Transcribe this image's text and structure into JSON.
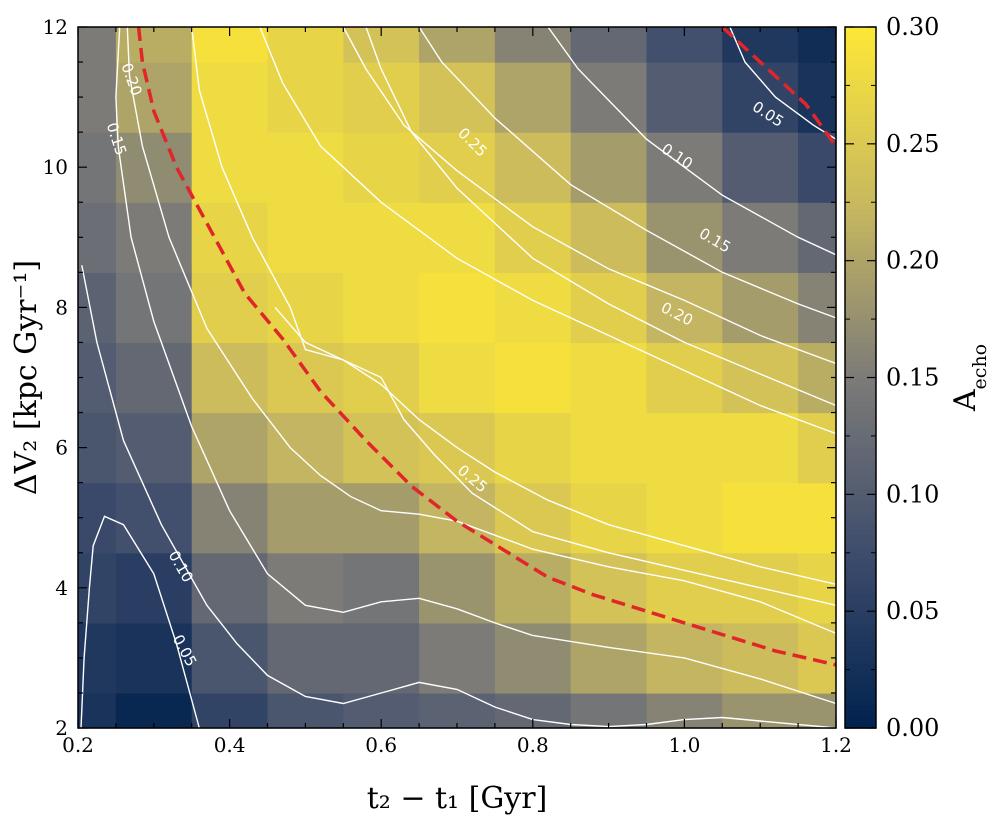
{
  "chart_data": {
    "type": "heatmap",
    "xlabel": "t₂ − t₁ [Gyr]",
    "ylabel": "ΔV₂ [kpc Gyr⁻¹]",
    "xlim": [
      0.2,
      1.2
    ],
    "ylim": [
      2,
      12
    ],
    "x_ticks": [
      "0.2",
      "0.4",
      "0.6",
      "0.8",
      "1.0",
      "1.2"
    ],
    "y_ticks": [
      "2",
      "4",
      "6",
      "8",
      "10",
      "12"
    ],
    "x_edges": [
      0.2,
      0.25,
      0.35,
      0.45,
      0.55,
      0.65,
      0.75,
      0.85,
      0.95,
      1.05,
      1.15,
      1.2
    ],
    "y_edges": [
      2,
      2.5,
      3.5,
      4.5,
      5.5,
      6.5,
      7.5,
      8.5,
      9.5,
      10.5,
      11.5,
      12
    ],
    "values": [
      [
        0.03,
        0.01,
        0.06,
        0.09,
        0.1,
        0.11,
        0.12,
        0.14,
        0.16,
        0.18,
        0.18
      ],
      [
        0.04,
        0.03,
        0.09,
        0.12,
        0.12,
        0.15,
        0.17,
        0.2,
        0.22,
        0.23,
        0.25
      ],
      [
        0.06,
        0.05,
        0.12,
        0.15,
        0.14,
        0.18,
        0.21,
        0.24,
        0.26,
        0.26,
        0.27
      ],
      [
        0.07,
        0.08,
        0.16,
        0.19,
        0.19,
        0.22,
        0.25,
        0.27,
        0.28,
        0.29,
        0.29
      ],
      [
        0.09,
        0.1,
        0.2,
        0.22,
        0.24,
        0.25,
        0.27,
        0.28,
        0.28,
        0.28,
        0.26
      ],
      [
        0.1,
        0.12,
        0.23,
        0.25,
        0.26,
        0.28,
        0.29,
        0.28,
        0.26,
        0.24,
        0.21
      ],
      [
        0.11,
        0.14,
        0.26,
        0.27,
        0.28,
        0.29,
        0.28,
        0.26,
        0.22,
        0.19,
        0.16
      ],
      [
        0.13,
        0.15,
        0.27,
        0.28,
        0.28,
        0.28,
        0.26,
        0.23,
        0.18,
        0.15,
        0.12
      ],
      [
        0.14,
        0.17,
        0.28,
        0.28,
        0.27,
        0.26,
        0.23,
        0.19,
        0.15,
        0.1,
        0.07
      ],
      [
        0.15,
        0.2,
        0.28,
        0.27,
        0.26,
        0.24,
        0.2,
        0.15,
        0.1,
        0.06,
        0.03
      ],
      [
        0.15,
        0.21,
        0.29,
        0.27,
        0.24,
        0.2,
        0.16,
        0.12,
        0.08,
        0.04,
        0.02
      ]
    ],
    "colorbar": {
      "label": "A_echo",
      "range": [
        0.0,
        0.3
      ],
      "ticks": [
        "0.00",
        "0.05",
        "0.10",
        "0.15",
        "0.20",
        "0.25",
        "0.30"
      ]
    },
    "contours": [
      {
        "level": 0.05,
        "label": "0.05",
        "points": [
          [
            0.204,
            2.0
          ],
          [
            0.208,
            3.0
          ],
          [
            0.215,
            4.0
          ],
          [
            0.22,
            4.6
          ],
          [
            0.235,
            5.02
          ],
          [
            0.26,
            4.9
          ],
          [
            0.3,
            4.2
          ],
          [
            0.33,
            3.2
          ],
          [
            0.36,
            2.0
          ]
        ]
      },
      {
        "level": 0.1,
        "label": "0.10",
        "points": [
          [
            0.205,
            8.6
          ],
          [
            0.225,
            7.5
          ],
          [
            0.26,
            6.1
          ],
          [
            0.31,
            4.9
          ],
          [
            0.37,
            3.75
          ],
          [
            0.41,
            3.2
          ],
          [
            0.45,
            2.75
          ],
          [
            0.5,
            2.45
          ],
          [
            0.55,
            2.35
          ],
          [
            0.6,
            2.5
          ],
          [
            0.65,
            2.65
          ],
          [
            0.7,
            2.55
          ],
          [
            0.75,
            2.3
          ],
          [
            0.8,
            2.12
          ],
          [
            0.85,
            2.05
          ],
          [
            0.9,
            2.02
          ],
          [
            0.95,
            2.05
          ],
          [
            1.0,
            2.12
          ],
          [
            1.05,
            2.15
          ],
          [
            1.1,
            2.1
          ],
          [
            1.2,
            2.0
          ]
        ]
      },
      {
        "level": 0.15,
        "label": "0.15",
        "points": [
          [
            0.255,
            12.0
          ],
          [
            0.25,
            11.0
          ],
          [
            0.253,
            10.3
          ],
          [
            0.27,
            9.0
          ],
          [
            0.3,
            7.8
          ],
          [
            0.35,
            6.3
          ],
          [
            0.4,
            5.1
          ],
          [
            0.45,
            4.2
          ],
          [
            0.5,
            3.75
          ],
          [
            0.55,
            3.65
          ],
          [
            0.6,
            3.8
          ],
          [
            0.65,
            3.85
          ],
          [
            0.7,
            3.7
          ],
          [
            0.75,
            3.5
          ],
          [
            0.8,
            3.32
          ],
          [
            0.9,
            3.15
          ],
          [
            1.0,
            3.0
          ],
          [
            1.1,
            2.7
          ],
          [
            1.2,
            2.35
          ]
        ]
      },
      {
        "level": 0.2,
        "label": "0.20",
        "points": [
          [
            0.265,
            12.0
          ],
          [
            0.268,
            11.3
          ],
          [
            0.285,
            10.3
          ],
          [
            0.32,
            9.0
          ],
          [
            0.37,
            7.7
          ],
          [
            0.43,
            6.7
          ],
          [
            0.48,
            6.0
          ],
          [
            0.52,
            5.6
          ],
          [
            0.56,
            5.3
          ],
          [
            0.6,
            5.1
          ],
          [
            0.65,
            5.05
          ],
          [
            0.7,
            4.95
          ],
          [
            0.75,
            4.75
          ],
          [
            0.8,
            4.55
          ],
          [
            0.9,
            4.3
          ],
          [
            1.0,
            4.1
          ],
          [
            1.1,
            3.8
          ],
          [
            1.2,
            3.35
          ]
        ]
      },
      {
        "level": 0.25,
        "label": "0.25",
        "points": [
          [
            0.58,
            12.0
          ],
          [
            0.6,
            11.4
          ],
          [
            0.64,
            10.5
          ],
          [
            0.7,
            9.7
          ],
          [
            0.8,
            8.7
          ],
          [
            0.9,
            8.05
          ],
          [
            1.0,
            7.5
          ],
          [
            1.1,
            7.05
          ],
          [
            1.2,
            6.6
          ]
        ]
      },
      {
        "level": 0.15,
        "label": "0.15",
        "points": [
          [
            0.65,
            12.0
          ],
          [
            0.68,
            11.5
          ],
          [
            0.75,
            10.7
          ],
          [
            0.85,
            9.75
          ],
          [
            0.95,
            9.1
          ],
          [
            1.05,
            8.5
          ],
          [
            1.15,
            8.05
          ],
          [
            1.2,
            7.85
          ]
        ]
      },
      {
        "level": 0.1,
        "label": "0.10",
        "points": [
          [
            0.82,
            12.0
          ],
          [
            0.86,
            11.4
          ],
          [
            0.95,
            10.4
          ],
          [
            1.05,
            9.6
          ],
          [
            1.15,
            9.0
          ],
          [
            1.2,
            8.75
          ]
        ]
      },
      {
        "level": 0.05,
        "label": "0.05",
        "points": [
          [
            1.06,
            12.0
          ],
          [
            1.08,
            11.5
          ],
          [
            1.12,
            11.0
          ],
          [
            1.17,
            10.6
          ],
          [
            1.2,
            10.4
          ]
        ]
      },
      {
        "level": 0.2,
        "label": "0.20",
        "points": [
          [
            0.55,
            12.0
          ],
          [
            0.58,
            11.4
          ],
          [
            0.63,
            10.6
          ],
          [
            0.7,
            9.95
          ],
          [
            0.8,
            9.15
          ],
          [
            0.9,
            8.55
          ],
          [
            1.0,
            8.1
          ],
          [
            1.1,
            7.6
          ],
          [
            1.2,
            7.2
          ]
        ]
      },
      {
        "level": 0.25,
        "label": "0.25",
        "points": [
          [
            0.44,
            12.0
          ],
          [
            0.47,
            11.2
          ],
          [
            0.52,
            10.3
          ],
          [
            0.6,
            9.5
          ],
          [
            0.7,
            8.7
          ],
          [
            0.8,
            8.1
          ],
          [
            0.9,
            7.6
          ],
          [
            1.0,
            7.1
          ],
          [
            1.1,
            6.6
          ],
          [
            1.2,
            6.2
          ]
        ]
      },
      {
        "level": 0.2,
        "label": "0.20",
        "points": [
          [
            0.35,
            12.0
          ],
          [
            0.36,
            11.1
          ],
          [
            0.39,
            10.0
          ],
          [
            0.43,
            9.0
          ],
          [
            0.48,
            8.0
          ],
          [
            0.5,
            7.4
          ],
          [
            0.55,
            7.25
          ],
          [
            0.6,
            7.0
          ],
          [
            0.63,
            6.4
          ],
          [
            0.67,
            5.9
          ],
          [
            0.72,
            5.35
          ],
          [
            0.8,
            4.8
          ],
          [
            0.9,
            4.5
          ],
          [
            1.0,
            4.25
          ],
          [
            1.1,
            4.0
          ],
          [
            1.2,
            3.75
          ]
        ]
      },
      {
        "level": 0.25,
        "label": "0.25",
        "points": [
          [
            0.46,
            8.0
          ],
          [
            0.5,
            7.5
          ],
          [
            0.55,
            7.25
          ],
          [
            0.6,
            6.9
          ],
          [
            0.65,
            6.4
          ],
          [
            0.7,
            6.0
          ],
          [
            0.75,
            5.65
          ],
          [
            0.82,
            5.25
          ],
          [
            0.9,
            4.9
          ],
          [
            1.0,
            4.6
          ],
          [
            1.1,
            4.3
          ],
          [
            1.2,
            4.05
          ]
        ]
      }
    ],
    "red_dashed_curve": [
      [
        0.28,
        12.0
      ],
      [
        0.285,
        11.5
      ],
      [
        0.3,
        10.8
      ],
      [
        0.33,
        10.0
      ],
      [
        0.37,
        9.2
      ],
      [
        0.42,
        8.2
      ],
      [
        0.47,
        7.55
      ],
      [
        0.52,
        6.8
      ],
      [
        0.58,
        6.1
      ],
      [
        0.64,
        5.45
      ],
      [
        0.7,
        4.95
      ],
      [
        0.76,
        4.55
      ],
      [
        0.82,
        4.15
      ],
      [
        0.88,
        3.9
      ],
      [
        0.94,
        3.7
      ],
      [
        1.0,
        3.5
      ],
      [
        1.06,
        3.3
      ],
      [
        1.12,
        3.1
      ],
      [
        1.2,
        2.9
      ]
    ],
    "red_dashed_curve_topright": [
      [
        1.05,
        12.0
      ],
      [
        1.08,
        11.7
      ],
      [
        1.12,
        11.3
      ],
      [
        1.16,
        10.9
      ],
      [
        1.2,
        10.3
      ]
    ],
    "contour_labels": [
      {
        "text": "0.20",
        "x": 0.27,
        "y": 11.25,
        "angle": 70
      },
      {
        "text": "0.15",
        "x": 0.25,
        "y": 10.4,
        "angle": 72
      },
      {
        "text": "0.10",
        "x": 0.335,
        "y": 4.3,
        "angle": 60
      },
      {
        "text": "0.05",
        "x": 0.34,
        "y": 3.1,
        "angle": 62
      },
      {
        "text": "0.25",
        "x": 0.72,
        "y": 10.35,
        "angle": 45
      },
      {
        "text": "0.25",
        "x": 0.72,
        "y": 5.55,
        "angle": 40
      },
      {
        "text": "0.20",
        "x": 0.99,
        "y": 7.9,
        "angle": 27
      },
      {
        "text": "0.15",
        "x": 1.04,
        "y": 8.95,
        "angle": 30
      },
      {
        "text": "0.10",
        "x": 0.99,
        "y": 10.15,
        "angle": 33
      },
      {
        "text": "0.05",
        "x": 1.11,
        "y": 10.75,
        "angle": 33
      }
    ]
  }
}
